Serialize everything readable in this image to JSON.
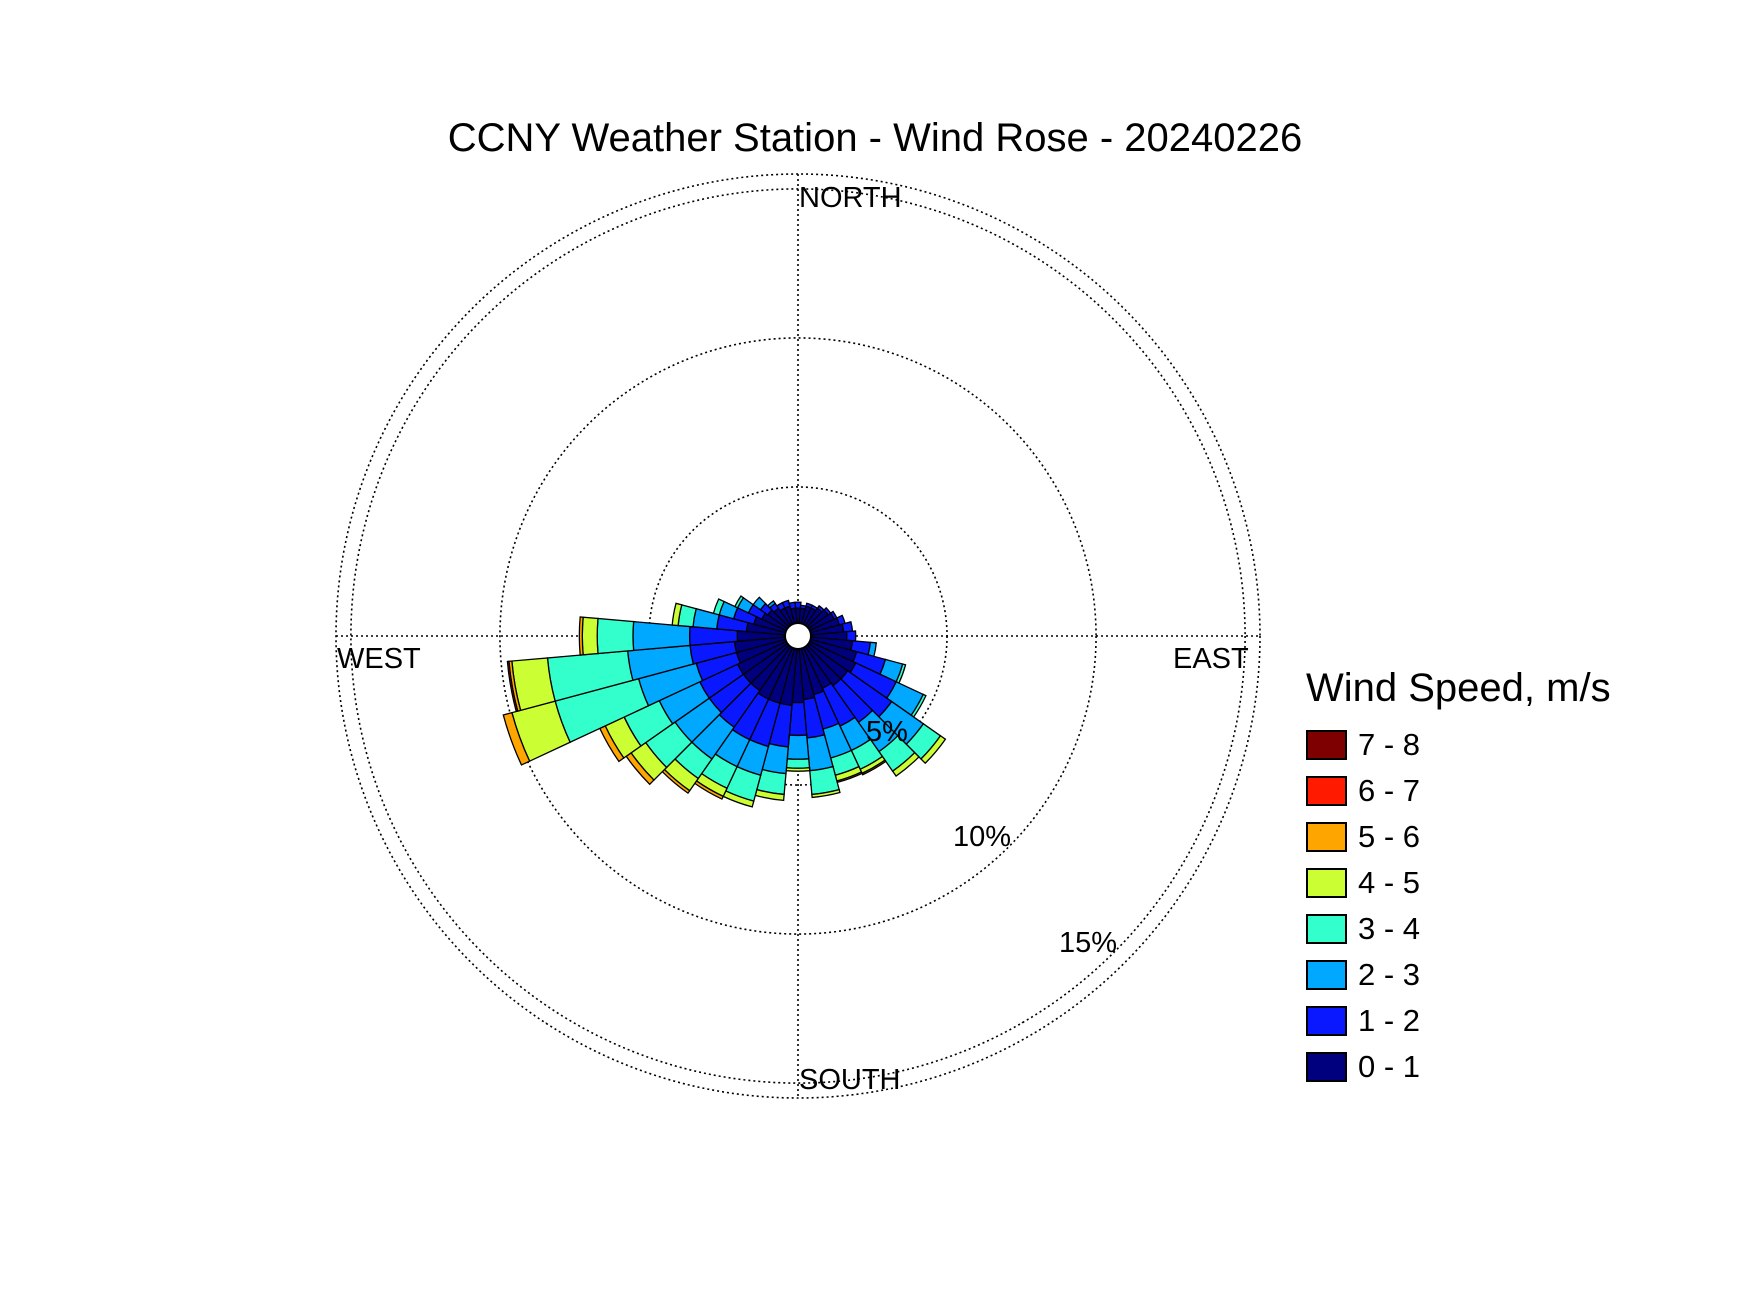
{
  "chart_data": {
    "type": "wind_rose",
    "title": "CCNY Weather Station - Wind Rose - 20240226",
    "directions": {
      "north": "NORTH",
      "south": "SOUTH",
      "east": "EAST",
      "west": "WEST"
    },
    "ring_values": [
      5,
      10,
      15
    ],
    "ring_labels": [
      "5%",
      "10%",
      "15%"
    ],
    "rmax": 15.5,
    "legend_title": "Wind Speed, m/s",
    "bins": [
      {
        "label": "0 - 1",
        "color": "#00007f"
      },
      {
        "label": "1 - 2",
        "color": "#0a18ff"
      },
      {
        "label": "2 - 3",
        "color": "#00a8ff"
      },
      {
        "label": "3 - 4",
        "color": "#33ffcc"
      },
      {
        "label": "4 - 5",
        "color": "#ccff33"
      },
      {
        "label": "5 - 6",
        "color": "#ffa500"
      },
      {
        "label": "6 - 7",
        "color": "#ff1a00"
      },
      {
        "label": "7 - 8",
        "color": "#7f0000"
      }
    ],
    "sector_width_deg": 10,
    "sectors": [
      {
        "dir": 0,
        "values": [
          0.5,
          0.2
        ]
      },
      {
        "dir": 10,
        "values": [
          0.5,
          0.1
        ]
      },
      {
        "dir": 20,
        "values": [
          0.6,
          0.1
        ]
      },
      {
        "dir": 30,
        "values": [
          0.6,
          0.1
        ]
      },
      {
        "dir": 40,
        "values": [
          0.7,
          0.1
        ]
      },
      {
        "dir": 50,
        "values": [
          0.8,
          0.1
        ]
      },
      {
        "dir": 60,
        "values": [
          0.9,
          0.1
        ]
      },
      {
        "dir": 70,
        "values": [
          1.0,
          0.2
        ]
      },
      {
        "dir": 80,
        "values": [
          1.1,
          0.3
        ]
      },
      {
        "dir": 90,
        "values": [
          1.2,
          0.3
        ]
      },
      {
        "dir": 100,
        "values": [
          1.4,
          0.6,
          0.2
        ]
      },
      {
        "dir": 110,
        "values": [
          1.6,
          1.0,
          0.6,
          0.1
        ]
      },
      {
        "dir": 120,
        "values": [
          1.7,
          1.5,
          1.0,
          0.1
        ]
      },
      {
        "dir": 130,
        "values": [
          1.6,
          1.8,
          1.3,
          0.7,
          0.2
        ]
      },
      {
        "dir": 140,
        "values": [
          1.6,
          1.5,
          1.2,
          0.8,
          0.2
        ]
      },
      {
        "dir": 150,
        "values": [
          1.5,
          1.4,
          0.9,
          0.7,
          0.15,
          0.05
        ]
      },
      {
        "dir": 160,
        "values": [
          1.6,
          1.2,
          1.0,
          0.6,
          0.2,
          0.05
        ]
      },
      {
        "dir": 170,
        "values": [
          1.7,
          1.3,
          1.1,
          0.8,
          0.1
        ]
      },
      {
        "dir": 180,
        "values": [
          1.8,
          1.1,
          0.8,
          0.3,
          0.1
        ]
      },
      {
        "dir": 190,
        "values": [
          1.9,
          1.4,
          0.9,
          0.7,
          0.2
        ]
      },
      {
        "dir": 200,
        "values": [
          1.9,
          1.5,
          1.0,
          0.9,
          0.2
        ]
      },
      {
        "dir": 210,
        "values": [
          1.9,
          1.5,
          1.0,
          0.8,
          0.3,
          0.1
        ]
      },
      {
        "dir": 220,
        "values": [
          1.8,
          1.5,
          1.3,
          0.8,
          0.5,
          0.1
        ]
      },
      {
        "dir": 230,
        "values": [
          1.8,
          1.4,
          1.4,
          1.2,
          0.6,
          0.2
        ]
      },
      {
        "dir": 240,
        "values": [
          1.8,
          1.4,
          1.5,
          1.3,
          0.7,
          0.2
        ]
      },
      {
        "dir": 250,
        "values": [
          1.7,
          1.4,
          2.0,
          2.9,
          1.5,
          0.3
        ]
      },
      {
        "dir": 260,
        "values": [
          1.7,
          1.5,
          2.1,
          2.7,
          1.2,
          0.1,
          0.05
        ]
      },
      {
        "dir": 270,
        "values": [
          1.6,
          1.6,
          1.9,
          1.2,
          0.5,
          0.1
        ]
      },
      {
        "dir": 280,
        "values": [
          1.3,
          1.0,
          0.8,
          0.5,
          0.2
        ]
      },
      {
        "dir": 290,
        "values": [
          1.1,
          0.7,
          0.5,
          0.2
        ]
      },
      {
        "dir": 300,
        "values": [
          0.9,
          0.5,
          0.4,
          0.1
        ]
      },
      {
        "dir": 310,
        "values": [
          0.8,
          0.3,
          0.3
        ]
      },
      {
        "dir": 320,
        "values": [
          0.7,
          0.2,
          0.1
        ]
      },
      {
        "dir": 330,
        "values": [
          0.6,
          0.2
        ]
      },
      {
        "dir": 340,
        "values": [
          0.6,
          0.2
        ]
      },
      {
        "dir": 350,
        "values": [
          0.5,
          0.2
        ]
      }
    ]
  }
}
